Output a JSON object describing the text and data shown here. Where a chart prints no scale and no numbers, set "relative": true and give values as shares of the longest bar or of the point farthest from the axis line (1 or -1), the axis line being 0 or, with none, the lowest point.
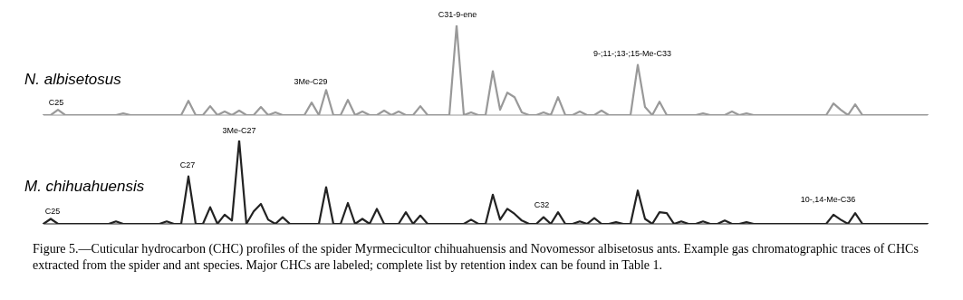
{
  "chart_data": [
    {
      "type": "line",
      "relative": true,
      "marker": "none",
      "line_style": "solid",
      "categories": [
        null,
        null,
        null,
        null,
        null,
        null,
        null,
        null,
        null,
        null,
        null,
        null,
        null,
        null,
        null,
        null,
        null,
        null,
        null,
        null,
        null,
        null,
        null,
        null,
        null,
        null,
        null,
        null,
        null,
        null,
        null,
        null,
        null,
        null,
        null,
        null,
        null,
        null,
        null,
        null,
        null,
        null,
        null,
        null,
        null,
        null,
        null,
        null,
        null,
        null,
        null,
        null,
        null,
        null,
        null,
        null,
        null,
        null,
        null,
        null,
        null,
        null,
        null,
        null,
        null,
        null,
        null,
        null,
        null,
        null,
        null,
        null,
        null,
        null,
        null,
        null,
        null,
        null,
        null,
        null,
        null,
        null,
        null,
        null,
        null,
        null,
        null,
        null,
        null,
        null,
        null,
        null,
        null,
        null,
        null,
        null,
        null,
        null,
        null,
        null,
        null,
        null,
        null,
        null,
        null,
        null,
        null,
        null,
        null,
        null,
        null,
        null,
        null,
        null,
        null,
        null,
        null,
        null,
        null,
        null,
        null,
        null,
        null
      ],
      "series": [
        {
          "name": "N. albisetosus",
          "color": "#999999",
          "values": [
            0,
            0,
            0.06,
            0,
            0,
            0,
            0,
            0,
            0,
            0,
            0,
            0.02,
            0,
            0,
            0,
            0,
            0,
            0,
            0,
            0,
            0.16,
            0,
            0,
            0.1,
            0,
            0.04,
            0,
            0.05,
            0,
            0,
            0.09,
            0,
            0.03,
            0,
            0,
            0,
            0,
            0.14,
            0,
            0.28,
            0,
            0,
            0.17,
            0,
            0.04,
            0,
            0,
            0.05,
            0,
            0.04,
            0,
            0,
            0.1,
            0,
            0,
            0,
            0,
            1,
            0,
            0.03,
            0,
            0,
            0.49,
            0.06,
            0.25,
            0.2,
            0.03,
            0,
            0,
            0.03,
            0,
            0.2,
            0,
            0,
            0.04,
            0,
            0,
            0.05,
            0,
            0,
            0,
            0,
            0.56,
            0.09,
            0,
            0.15,
            0,
            0,
            0,
            0,
            0,
            0.02,
            0,
            0,
            0,
            0.04,
            0,
            0.02,
            0,
            0,
            0,
            0,
            0,
            0,
            0,
            0,
            0,
            0,
            0,
            0.13,
            0.06,
            0,
            0.12,
            0,
            0,
            0,
            0,
            0,
            0,
            0,
            0,
            0,
            0
          ]
        }
      ],
      "annotations": [
        "C25",
        "3Me-C29",
        "C31-9-ene",
        "9-;11-;13-;15-Me-C33"
      ]
    },
    {
      "type": "line",
      "relative": true,
      "marker": "none",
      "line_style": "solid",
      "categories": [
        null,
        null,
        null,
        null,
        null,
        null,
        null,
        null,
        null,
        null,
        null,
        null,
        null,
        null,
        null,
        null,
        null,
        null,
        null,
        null,
        null,
        null,
        null,
        null,
        null,
        null,
        null,
        null,
        null,
        null,
        null,
        null,
        null,
        null,
        null,
        null,
        null,
        null,
        null,
        null,
        null,
        null,
        null,
        null,
        null,
        null,
        null,
        null,
        null,
        null,
        null,
        null,
        null,
        null,
        null,
        null,
        null,
        null,
        null,
        null,
        null,
        null,
        null,
        null,
        null,
        null,
        null,
        null,
        null,
        null,
        null,
        null,
        null,
        null,
        null,
        null,
        null,
        null,
        null,
        null,
        null,
        null,
        null,
        null,
        null,
        null,
        null,
        null,
        null,
        null,
        null,
        null,
        null,
        null,
        null,
        null,
        null,
        null,
        null,
        null,
        null,
        null,
        null,
        null,
        null,
        null,
        null,
        null,
        null,
        null,
        null,
        null,
        null,
        null,
        null,
        null,
        null,
        null,
        null,
        null,
        null,
        null,
        null
      ],
      "series": [
        {
          "name": "M. chihuahuensis",
          "color": "#222222",
          "values": [
            0,
            0.06,
            0,
            0,
            0,
            0,
            0,
            0,
            0,
            0,
            0.03,
            0,
            0,
            0,
            0,
            0,
            0,
            0.03,
            0,
            0,
            0.57,
            0,
            0,
            0.2,
            0,
            0.11,
            0.04,
            1,
            0,
            0.15,
            0.24,
            0.05,
            0,
            0.08,
            0,
            0,
            0,
            0,
            0,
            0.44,
            0,
            0,
            0.25,
            0,
            0.06,
            0,
            0.18,
            0,
            0,
            0,
            0.14,
            0,
            0.1,
            0,
            0,
            0,
            0,
            0,
            0,
            0.05,
            0,
            0,
            0.35,
            0.05,
            0.18,
            0.12,
            0.04,
            0,
            0,
            0.08,
            0,
            0.14,
            0,
            0,
            0.03,
            0,
            0.07,
            0,
            0,
            0.02,
            0,
            0,
            0.4,
            0.06,
            0,
            0.14,
            0.13,
            0,
            0.03,
            0,
            0,
            0.03,
            0,
            0,
            0.04,
            0,
            0,
            0.02,
            0,
            0,
            0,
            0,
            0,
            0,
            0,
            0,
            0,
            0,
            0,
            0.11,
            0.05,
            0,
            0.13,
            0,
            0,
            0,
            0,
            0,
            0,
            0,
            0,
            0,
            0
          ]
        }
      ],
      "annotations": [
        "C25",
        "C27",
        "3Me-C27",
        "C32",
        "10-,14-Me-C36",
        "Figure 5.—Cuticular hydrocarbon (CHC) profiles of the spider Myrmecicultor chihuahuensis and Novomessor albisetosus ants. Example gas chromatographic traces of CHCs extracted from the spider and ant species. Major CHCs are labeled; complete list by retention index can be found in Table 1."
      ]
    }
  ]
}
